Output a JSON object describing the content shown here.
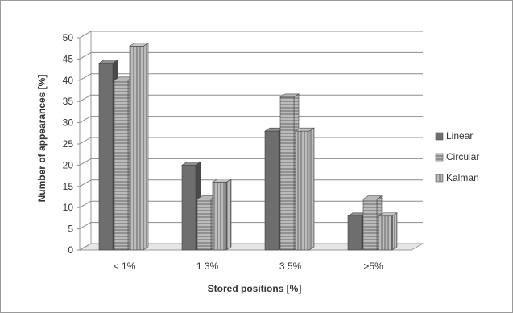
{
  "chart_data": {
    "type": "bar",
    "style": "3d-clustered-column",
    "categories": [
      "< 1%",
      "1 3%",
      "3 5%",
      ">5%"
    ],
    "series": [
      {
        "name": "Linear",
        "values": [
          44,
          20,
          28,
          8
        ],
        "pattern": "solid-dark",
        "color": "#6b6b6b"
      },
      {
        "name": "Circular",
        "values": [
          40,
          12,
          36,
          12
        ],
        "pattern": "horizontal-lines",
        "color": "#555555"
      },
      {
        "name": "Kalman",
        "values": [
          48,
          16,
          28,
          8
        ],
        "pattern": "vertical-lines",
        "color": "#555555"
      }
    ],
    "xlabel": "Stored positions [%]",
    "ylabel": "Number of appearances [%]",
    "ylim": [
      0,
      50
    ],
    "yticks": [
      "0",
      "5",
      "10",
      "15",
      "20",
      "25",
      "30",
      "35",
      "40",
      "45",
      "50"
    ],
    "grid": true,
    "legend_position": "right"
  }
}
